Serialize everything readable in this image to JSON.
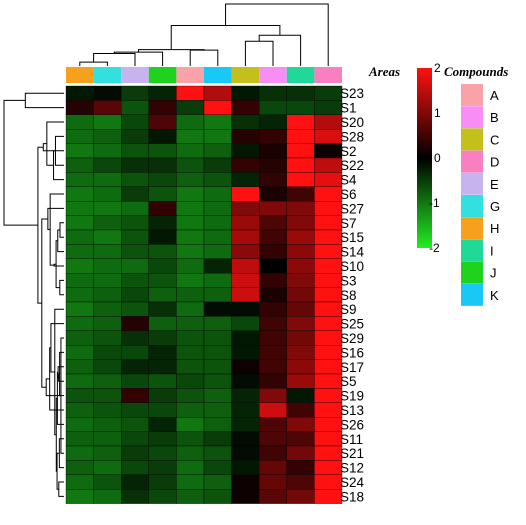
{
  "chart_data": {
    "type": "heatmap",
    "column_annotation_title": "Areas",
    "legend_title": "Compounds",
    "legend": [
      {
        "label": "A",
        "color": "#f9a3a8"
      },
      {
        "label": "B",
        "color": "#f78df5"
      },
      {
        "label": "C",
        "color": "#c3c01c"
      },
      {
        "label": "D",
        "color": "#f87fc0"
      },
      {
        "label": "E",
        "color": "#c6b4ef"
      },
      {
        "label": "G",
        "color": "#33e0e0"
      },
      {
        "label": "H",
        "color": "#f7a01d"
      },
      {
        "label": "I",
        "color": "#20d998"
      },
      {
        "label": "J",
        "color": "#1ed21e"
      },
      {
        "label": "K",
        "color": "#19c8f5"
      }
    ],
    "column_colors": [
      "#f7a01d",
      "#33e0e0",
      "#c6b4ef",
      "#1ed21e",
      "#f9a3a8",
      "#19c8f5",
      "#c3c01c",
      "#f78df5",
      "#20d998",
      "#f87fc0"
    ],
    "rows": [
      "S23",
      "S1",
      "S20",
      "S28",
      "S2",
      "S22",
      "S4",
      "S6",
      "S27",
      "S7",
      "S15",
      "S14",
      "S10",
      "S3",
      "S8",
      "S9",
      "S25",
      "S29",
      "S16",
      "S17",
      "S5",
      "S19",
      "S13",
      "S26",
      "S11",
      "S21",
      "S12",
      "S24",
      "S18"
    ],
    "color_scale": {
      "min": -2,
      "max": 2,
      "ticks": [
        2,
        1,
        0,
        -1,
        -2
      ],
      "low_color": "#22ee22",
      "mid_color": "#000000",
      "high_color": "#ff1111"
    },
    "values": [
      [
        -0.2,
        -0.1,
        -0.5,
        -0.3,
        2.4,
        1.4,
        -0.2,
        -0.4,
        -0.4,
        -0.5
      ],
      [
        0.3,
        0.7,
        -0.7,
        0.4,
        -0.5,
        2.3,
        0.4,
        -0.6,
        -0.6,
        -0.5
      ],
      [
        -0.9,
        -1.0,
        -0.6,
        0.6,
        -0.9,
        -1.0,
        -0.4,
        -0.3,
        2.2,
        1.4
      ],
      [
        -0.9,
        -0.8,
        -0.5,
        -0.2,
        -1.0,
        -1.0,
        0.3,
        0.4,
        2.2,
        1.7
      ],
      [
        -1.0,
        -0.9,
        -0.7,
        -0.7,
        -0.9,
        -0.8,
        -0.2,
        0.2,
        2.3,
        0.1
      ],
      [
        -0.8,
        -0.6,
        -0.4,
        -0.4,
        -0.7,
        -0.5,
        0.4,
        0.3,
        2.4,
        1.5
      ],
      [
        -0.9,
        -0.9,
        -0.7,
        -0.6,
        -0.8,
        -0.7,
        -0.3,
        0.4,
        2.4,
        1.8
      ],
      [
        -1.0,
        -0.9,
        -0.5,
        -0.7,
        -1.0,
        -0.9,
        2.3,
        0.2,
        0.5,
        2.0
      ],
      [
        -1.0,
        -1.0,
        -0.9,
        0.4,
        -1.0,
        -0.9,
        1.0,
        1.0,
        1.0,
        2.0
      ],
      [
        -1.0,
        -0.8,
        -0.7,
        -0.3,
        -1.0,
        -0.9,
        1.2,
        0.6,
        1.0,
        2.0
      ],
      [
        -0.9,
        -1.0,
        -0.7,
        -0.2,
        -1.0,
        -0.9,
        1.3,
        0.5,
        1.2,
        2.0
      ],
      [
        -0.9,
        -0.9,
        -0.7,
        -0.7,
        -1.0,
        -0.9,
        1.1,
        0.4,
        1.1,
        2.1
      ],
      [
        -1.0,
        -0.9,
        -0.9,
        -0.6,
        -0.9,
        -0.3,
        1.5,
        0.0,
        1.1,
        2.1
      ],
      [
        -0.9,
        -0.9,
        -0.7,
        -0.7,
        -1.0,
        -0.9,
        1.6,
        0.4,
        1.0,
        2.1
      ],
      [
        -0.9,
        -0.8,
        -0.6,
        -0.8,
        -0.8,
        -0.8,
        1.6,
        0.2,
        0.9,
        2.1
      ],
      [
        -1.0,
        -0.8,
        -0.7,
        -0.4,
        -0.9,
        -0.1,
        -0.1,
        0.4,
        0.8,
        2.3
      ],
      [
        -0.9,
        -0.8,
        0.3,
        -0.8,
        -0.8,
        -0.8,
        -0.6,
        0.5,
        1.0,
        2.3
      ],
      [
        -0.8,
        -0.7,
        -0.4,
        -0.5,
        -0.7,
        -0.7,
        -0.2,
        0.5,
        0.9,
        2.3
      ],
      [
        -0.9,
        -0.6,
        -0.6,
        -0.3,
        -0.7,
        -0.7,
        -0.2,
        0.5,
        1.0,
        2.3
      ],
      [
        -0.8,
        -0.6,
        -0.3,
        -0.3,
        -0.7,
        -0.7,
        0.1,
        0.5,
        1.1,
        2.3
      ],
      [
        -0.9,
        -0.8,
        -0.6,
        -0.7,
        -0.6,
        -0.7,
        -0.1,
        0.4,
        1.2,
        2.3
      ],
      [
        -0.7,
        -0.7,
        0.4,
        -0.5,
        -0.7,
        -0.8,
        -0.3,
        1.0,
        -0.2,
        2.4
      ],
      [
        -0.8,
        -0.7,
        -0.6,
        -0.6,
        -0.8,
        -0.8,
        -0.3,
        1.6,
        0.5,
        2.3
      ],
      [
        -0.9,
        -0.8,
        -0.7,
        -0.3,
        -1.0,
        -0.8,
        -0.3,
        0.6,
        1.0,
        2.2
      ],
      [
        -0.8,
        -0.8,
        -0.6,
        -0.5,
        -0.7,
        -0.5,
        -0.1,
        0.6,
        0.6,
        2.2
      ],
      [
        -0.9,
        -0.8,
        -0.5,
        -0.6,
        -0.8,
        -0.7,
        -0.1,
        0.5,
        0.9,
        2.2
      ],
      [
        -0.8,
        -0.9,
        -0.6,
        -0.5,
        -0.9,
        -0.6,
        -0.2,
        0.8,
        0.4,
        2.1
      ],
      [
        -0.9,
        -0.7,
        -0.3,
        -0.5,
        -0.9,
        -0.8,
        0.1,
        0.8,
        0.6,
        2.3
      ],
      [
        -1.0,
        -0.9,
        -0.4,
        -0.6,
        -0.8,
        -0.7,
        0.1,
        0.7,
        0.9,
        2.2
      ]
    ]
  }
}
